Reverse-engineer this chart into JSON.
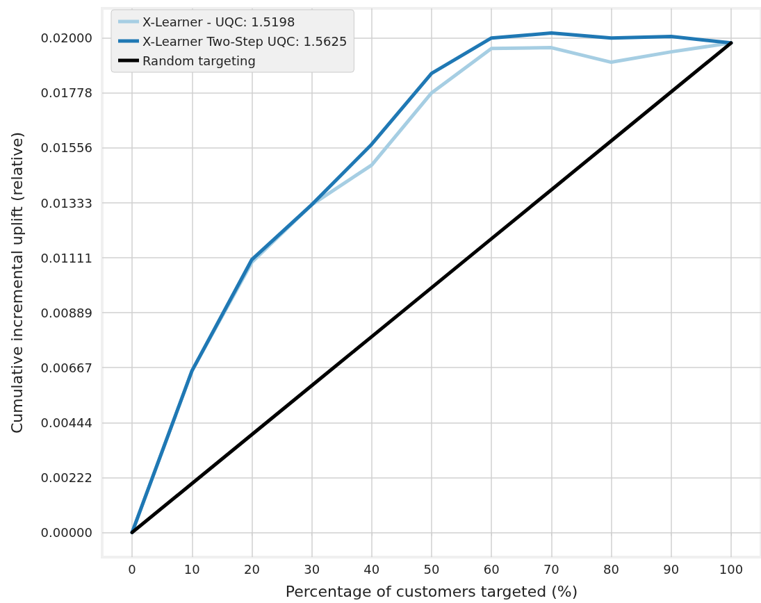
{
  "chart_data": {
    "type": "line",
    "xlabel": "Percentage of customers targeted (%)",
    "ylabel": "Cumulative incremental uplift (relative)",
    "x": [
      0,
      10,
      20,
      30,
      40,
      50,
      60,
      70,
      80,
      90,
      100
    ],
    "series": [
      {
        "name": "X-Learner - UQC: 1.5198",
        "color": "#a6cee3",
        "values": [
          0,
          0.00654,
          0.01093,
          0.01326,
          0.01486,
          0.01778,
          0.01958,
          0.01961,
          0.01902,
          0.01944,
          0.0198
        ]
      },
      {
        "name": "X-Learner Two-Step UQC: 1.5625",
        "color": "#1f78b4",
        "values": [
          0,
          0.00654,
          0.01104,
          0.01326,
          0.0157,
          0.01857,
          0.02,
          0.0202,
          0.02,
          0.02006,
          0.0198
        ]
      },
      {
        "name": "Random targeting",
        "color": "#000000",
        "values": [
          0,
          0.00198,
          0.00396,
          0.00594,
          0.00792,
          0.0099,
          0.01188,
          0.01386,
          0.01584,
          0.01782,
          0.0198
        ]
      }
    ],
    "xlim": [
      -5,
      105
    ],
    "xticks": [
      0,
      10,
      20,
      30,
      40,
      50,
      60,
      70,
      80,
      90,
      100
    ],
    "ylim": [
      -0.001,
      0.0212
    ],
    "yticks": [
      {
        "value": 0,
        "label": "0.00000"
      },
      0.00222,
      0.00444,
      0.00667,
      0.00889,
      0.01111,
      0.01333,
      0.01556,
      0.01778,
      {
        "value": 0.02,
        "label": "0.02000"
      }
    ],
    "grid": true,
    "legend": "top left",
    "marker": "none",
    "line_style": "solid"
  }
}
